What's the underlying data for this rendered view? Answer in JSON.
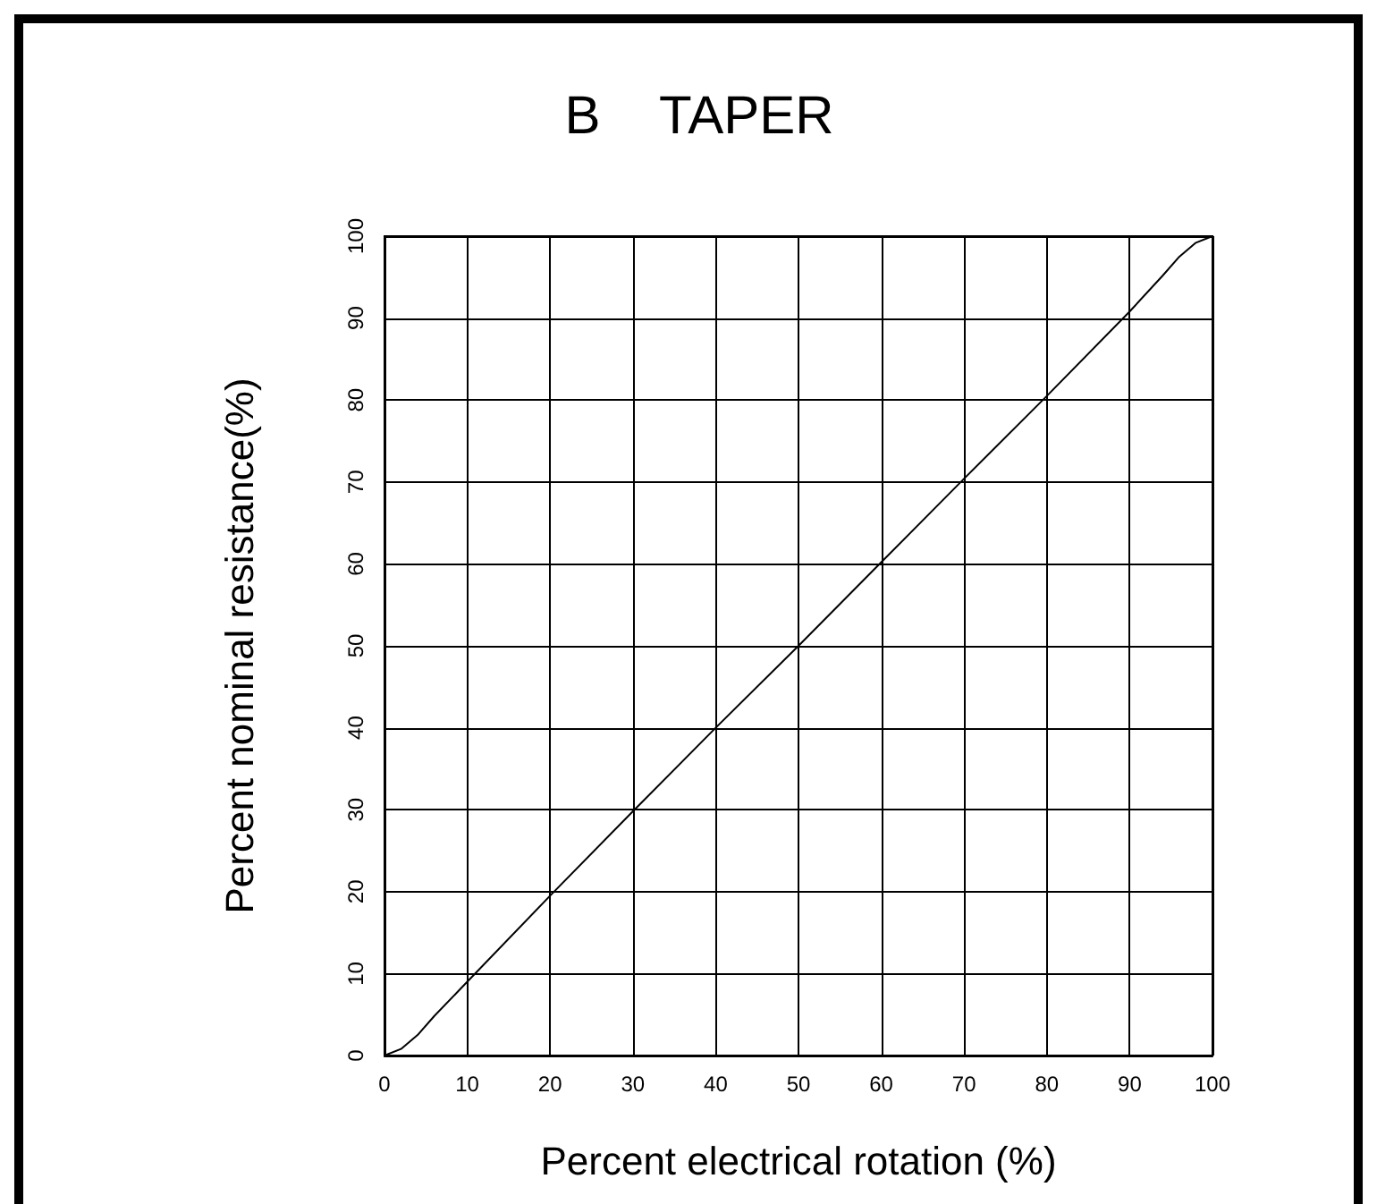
{
  "chart_data": {
    "type": "line",
    "title": "B    TAPER",
    "xlabel": "Percent electrical rotation (%)",
    "ylabel": "Percent nominal resistance(%)",
    "series": [
      {
        "color": "#000000",
        "x": [
          0,
          2,
          4,
          6,
          10,
          20,
          30,
          40,
          50,
          60,
          70,
          80,
          90,
          94,
          96,
          98,
          100
        ],
        "values": [
          0,
          0.8,
          2.5,
          4.8,
          9,
          19.5,
          29.8,
          40,
          50,
          60.2,
          70.4,
          80.5,
          90.8,
          95.2,
          97.5,
          99.2,
          100
        ]
      }
    ],
    "xlim": [
      0,
      100
    ],
    "xticks": [
      0,
      10,
      20,
      30,
      40,
      50,
      60,
      70,
      80,
      90,
      100
    ],
    "ylim": [
      0,
      100
    ],
    "yticks": [
      0,
      10,
      20,
      30,
      40,
      50,
      60,
      70,
      80,
      90,
      100
    ],
    "grid": true,
    "marker": "none",
    "line_style": "solid"
  }
}
